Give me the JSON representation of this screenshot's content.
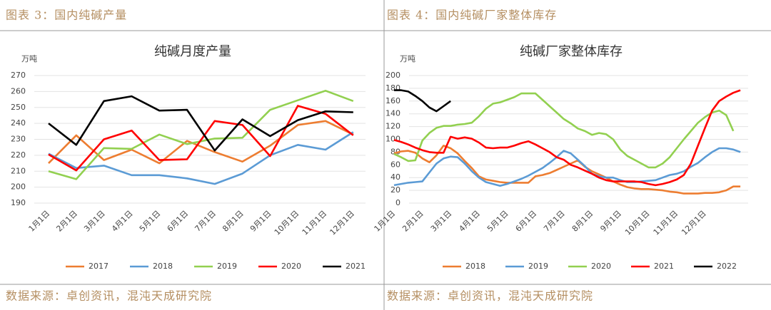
{
  "chart_data": [
    {
      "type": "line",
      "caption": "图表 3：国内纯碱产量",
      "title": "纯碱月度产量",
      "y_label": "万吨",
      "source": "数据来源：卓创资讯，混沌天成研究院",
      "categories": [
        "1月1日",
        "2月1日",
        "3月1日",
        "4月1日",
        "5月1日",
        "6月1日",
        "7月1日",
        "8月1日",
        "9月1日",
        "10月1日",
        "11月1日",
        "12月1日"
      ],
      "ylim": [
        190,
        270
      ],
      "yticks": [
        190,
        200,
        210,
        220,
        230,
        240,
        250,
        260,
        270
      ],
      "grid": true,
      "series": [
        {
          "name": "2017",
          "color": "#ed7d31",
          "values": [
            215,
            232.5,
            217,
            223.5,
            215,
            229,
            222,
            216,
            226,
            239,
            241.5,
            233
          ]
        },
        {
          "name": "2018",
          "color": "#5b9bd5",
          "values": [
            221,
            212,
            213.5,
            207.5,
            207.5,
            205.5,
            202,
            208.5,
            220,
            226.5,
            223.5,
            234.5
          ]
        },
        {
          "name": "2019",
          "color": "#92d050",
          "values": [
            210,
            205,
            224.5,
            224,
            233,
            227,
            230.5,
            231,
            248.5,
            254.5,
            260.5,
            254
          ]
        },
        {
          "name": "2020",
          "color": "#ff0000",
          "values": [
            220.5,
            210.5,
            230,
            235.5,
            217,
            217.5,
            241.5,
            239,
            219.5,
            251,
            246,
            232.5
          ]
        },
        {
          "name": "2021",
          "color": "#000000",
          "values": [
            240,
            226.5,
            254,
            257,
            248,
            248.5,
            223,
            242.5,
            232,
            242,
            247.5,
            247
          ]
        }
      ]
    },
    {
      "type": "line",
      "caption": "图表 4：国内纯碱厂家整体库存",
      "title": "纯碱厂家整体库存",
      "y_label": "万吨",
      "source": "数据来源：卓创资讯，混沌天成研究院",
      "categories": [
        "1月1日",
        null,
        null,
        null,
        "2月1日",
        null,
        null,
        null,
        "3月1日",
        null,
        null,
        null,
        "4月1日",
        null,
        null,
        null,
        "5月1日",
        null,
        null,
        null,
        "6月1日",
        null,
        null,
        null,
        "7月1日",
        null,
        null,
        null,
        "8月1日",
        null,
        null,
        null,
        "9月1日",
        null,
        null,
        null,
        "10月1日",
        null,
        null,
        null,
        "11月1日",
        null,
        null,
        null,
        "12月1日",
        null,
        null,
        null,
        null,
        null
      ],
      "ylim": [
        0,
        200
      ],
      "yticks": [
        0,
        20,
        40,
        60,
        80,
        100,
        120,
        140,
        160,
        180,
        200
      ],
      "grid": true,
      "series": [
        {
          "name": "2018",
          "color": "#ed7d31",
          "values": [
            78,
            81,
            82,
            79,
            70,
            64,
            75,
            90,
            86,
            78,
            66,
            55,
            42,
            37,
            35,
            33,
            32,
            32,
            32,
            32,
            42,
            44,
            47,
            52,
            57,
            62,
            67,
            57,
            50,
            45,
            40,
            34,
            29,
            25,
            23,
            22,
            22,
            21,
            20,
            18,
            17,
            15,
            15,
            15,
            16,
            16,
            17,
            20,
            26,
            26
          ]
        },
        {
          "name": "2019",
          "color": "#5b9bd5",
          "values": [
            28,
            30,
            32,
            33,
            34,
            48,
            62,
            70,
            73,
            72,
            62,
            50,
            40,
            33,
            30,
            27,
            30,
            34,
            38,
            43,
            49,
            55,
            63,
            72,
            82,
            78,
            68,
            58,
            46,
            42,
            40,
            40,
            36,
            33,
            33,
            34,
            35,
            36,
            40,
            44,
            46,
            50,
            57,
            63,
            72,
            80,
            86,
            86,
            84,
            80
          ]
        },
        {
          "name": "2020",
          "color": "#92d050",
          "values": [
            77,
            72,
            66,
            67,
            98,
            110,
            118,
            121,
            121,
            123,
            124,
            126,
            136,
            148,
            156,
            158,
            162,
            166,
            172,
            172,
            172,
            162,
            152,
            142,
            132,
            125,
            117,
            113,
            107,
            110,
            108,
            100,
            84,
            74,
            68,
            62,
            56,
            56,
            62,
            72,
            86,
            100,
            113,
            126,
            135,
            142,
            145,
            138,
            113,
            null
          ]
        },
        {
          "name": "2021",
          "color": "#ff0000",
          "values": [
            99,
            96,
            92,
            87,
            83,
            80,
            79,
            79,
            104,
            101,
            103,
            101,
            95,
            87,
            86,
            87,
            87,
            90,
            94,
            97,
            92,
            86,
            80,
            72,
            68,
            60,
            56,
            51,
            46,
            40,
            36,
            34,
            34,
            34,
            34,
            33,
            30,
            28,
            30,
            33,
            37,
            44,
            62,
            90,
            118,
            145,
            160,
            167,
            173,
            177
          ]
        },
        {
          "name": "2022",
          "color": "#000000",
          "values": [
            177,
            177,
            175,
            168,
            160,
            150,
            144,
            152,
            160,
            null,
            null,
            null,
            null,
            null,
            null,
            null,
            null,
            null,
            null,
            null,
            null,
            null,
            null,
            null,
            null,
            null,
            null,
            null,
            null,
            null,
            null,
            null,
            null,
            null,
            null,
            null,
            null,
            null,
            null,
            null,
            null,
            null,
            null,
            null,
            null,
            null,
            null,
            null,
            null,
            null
          ]
        }
      ]
    }
  ]
}
